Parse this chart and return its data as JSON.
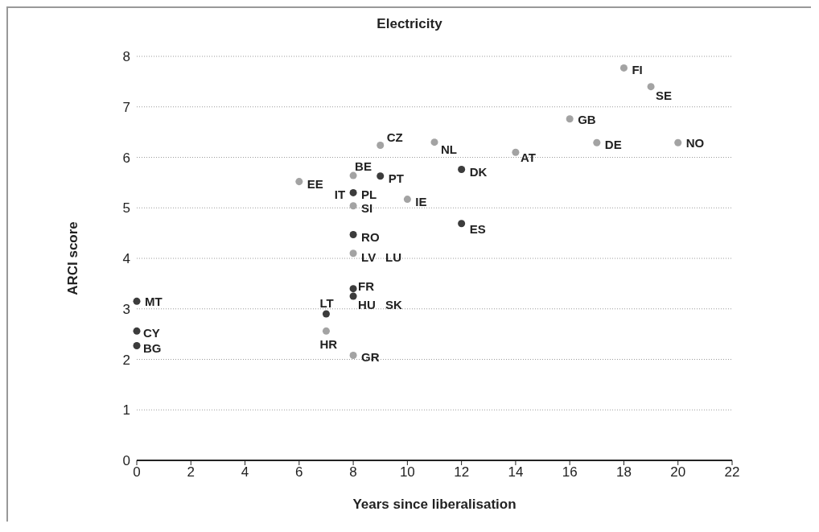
{
  "chart_data": {
    "type": "scatter",
    "title": "Electricity",
    "xlabel": "Years since liberalisation",
    "ylabel": "ARCI score",
    "xlim": [
      0,
      22
    ],
    "xticks": [
      0,
      2,
      4,
      6,
      8,
      10,
      12,
      14,
      16,
      18,
      20,
      22
    ],
    "ylim": [
      0,
      8
    ],
    "yticks": [
      0,
      1,
      2,
      3,
      4,
      5,
      6,
      7,
      8
    ],
    "grid": "y",
    "marker": "circle",
    "series": [
      {
        "color": "#a3a3a3",
        "x": [
          18,
          19,
          16,
          17,
          20,
          14,
          11,
          9,
          8,
          6,
          10,
          8,
          8,
          7,
          8
        ],
        "values": [
          7.77,
          7.4,
          6.76,
          6.29,
          6.29,
          6.1,
          6.3,
          6.24,
          5.64,
          5.52,
          5.17,
          5.04,
          4.1,
          2.56,
          2.08
        ]
      },
      {
        "color": "#3c3c3c",
        "x": [
          9,
          12,
          8,
          12,
          8,
          8,
          8,
          7,
          0,
          0,
          0
        ],
        "values": [
          5.63,
          5.76,
          5.3,
          4.69,
          4.47,
          3.4,
          3.25,
          2.9,
          3.15,
          2.56,
          2.27
        ]
      }
    ],
    "annotations": [
      {
        "text": "FI",
        "x": 18,
        "y": 7.77
      },
      {
        "text": "SE",
        "x": 19,
        "y": 7.4
      },
      {
        "text": "GB",
        "x": 16,
        "y": 6.76
      },
      {
        "text": "DE",
        "x": 17,
        "y": 6.29
      },
      {
        "text": "NO",
        "x": 20,
        "y": 6.29
      },
      {
        "text": "AT",
        "x": 14,
        "y": 6.1
      },
      {
        "text": "NL",
        "x": 11,
        "y": 6.3
      },
      {
        "text": "CZ",
        "x": 9,
        "y": 6.24
      },
      {
        "text": "BE",
        "x": 8,
        "y": 5.64
      },
      {
        "text": "EE",
        "x": 6,
        "y": 5.52
      },
      {
        "text": "PT",
        "x": 9,
        "y": 5.63
      },
      {
        "text": "DK",
        "x": 12,
        "y": 5.76
      },
      {
        "text": "IT",
        "x": 8,
        "y": 5.3
      },
      {
        "text": "PL",
        "x": 8,
        "y": 5.3
      },
      {
        "text": "SI",
        "x": 8,
        "y": 5.04
      },
      {
        "text": "IE",
        "x": 10,
        "y": 5.17
      },
      {
        "text": "ES",
        "x": 12,
        "y": 4.69
      },
      {
        "text": "RO",
        "x": 8,
        "y": 4.47
      },
      {
        "text": "LV",
        "x": 8,
        "y": 4.1
      },
      {
        "text": "LU",
        "x": 8,
        "y": 4.1
      },
      {
        "text": "FR",
        "x": 8,
        "y": 3.4
      },
      {
        "text": "HU",
        "x": 8,
        "y": 3.25
      },
      {
        "text": "SK",
        "x": 8,
        "y": 3.25
      },
      {
        "text": "LT",
        "x": 7,
        "y": 2.9
      },
      {
        "text": "HR",
        "x": 7,
        "y": 2.56
      },
      {
        "text": "GR",
        "x": 8,
        "y": 2.08
      },
      {
        "text": "MT",
        "x": 0,
        "y": 3.15
      },
      {
        "text": "CY",
        "x": 0,
        "y": 2.56
      },
      {
        "text": "BG",
        "x": 0,
        "y": 2.27
      }
    ]
  }
}
